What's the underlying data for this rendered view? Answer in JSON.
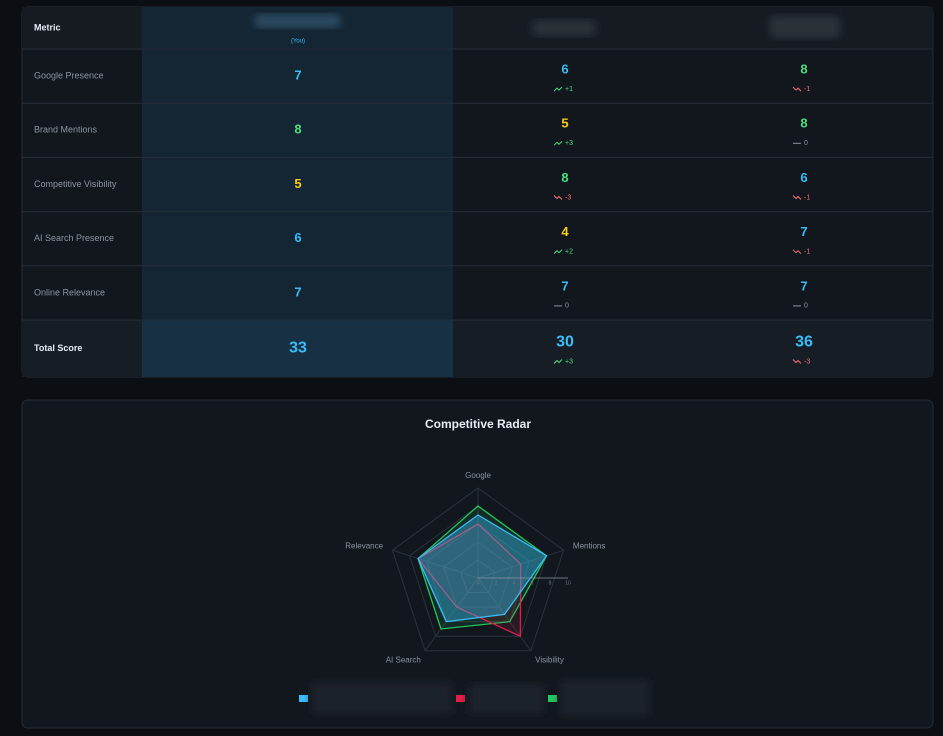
{
  "table": {
    "header": {
      "metric": "Metric",
      "you_tag": "(You)"
    },
    "rows": [
      {
        "metric": "Google Presence",
        "you": 7,
        "competitors": [
          {
            "value": 6,
            "delta": "+1"
          },
          {
            "value": 8,
            "delta": "-1"
          }
        ]
      },
      {
        "metric": "Brand Mentions",
        "you": 8,
        "competitors": [
          {
            "value": 5,
            "delta": "+3"
          },
          {
            "value": 8,
            "delta": "0"
          }
        ]
      },
      {
        "metric": "Competitive Visibility",
        "you": 5,
        "competitors": [
          {
            "value": 8,
            "delta": "-3"
          },
          {
            "value": 6,
            "delta": "-1"
          }
        ]
      },
      {
        "metric": "AI Search Presence",
        "you": 6,
        "competitors": [
          {
            "value": 4,
            "delta": "+2"
          },
          {
            "value": 7,
            "delta": "-1"
          }
        ]
      },
      {
        "metric": "Online Relevance",
        "you": 7,
        "competitors": [
          {
            "value": 7,
            "delta": "0"
          },
          {
            "value": 7,
            "delta": "0"
          }
        ]
      }
    ],
    "total": {
      "metric": "Total Score",
      "you": 33,
      "competitors": [
        {
          "value": 30,
          "delta": "+3"
        },
        {
          "value": 36,
          "delta": "-3"
        }
      ]
    }
  },
  "chart_data": {
    "type": "radar",
    "title": "Competitive Radar",
    "categories": [
      "Google",
      "Mentions",
      "Visibility",
      "AI Search",
      "Relevance"
    ],
    "series": [
      {
        "color": "#38bdf8",
        "values": [
          7,
          8,
          5,
          6,
          7
        ]
      },
      {
        "color": "#e11d48",
        "values": [
          6,
          5,
          8,
          4,
          7
        ]
      },
      {
        "color": "#22c55e",
        "values": [
          8,
          8,
          6,
          7,
          7
        ]
      }
    ],
    "rlim": [
      0,
      10
    ],
    "rticks": [
      0,
      2,
      4,
      6,
      8,
      10
    ]
  }
}
